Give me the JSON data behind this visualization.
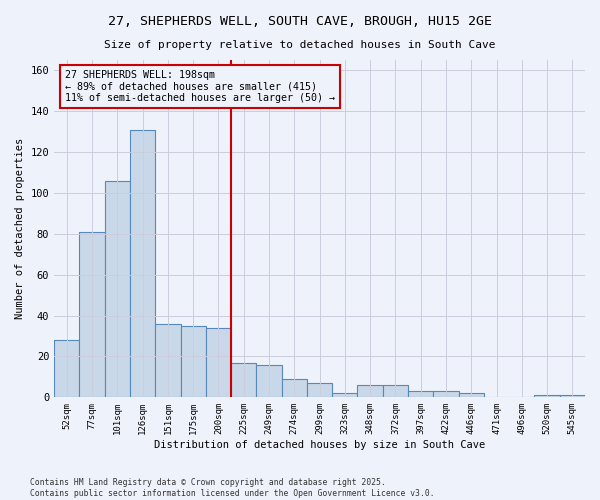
{
  "title1": "27, SHEPHERDS WELL, SOUTH CAVE, BROUGH, HU15 2GE",
  "title2": "Size of property relative to detached houses in South Cave",
  "xlabel": "Distribution of detached houses by size in South Cave",
  "ylabel": "Number of detached properties",
  "bar_labels": [
    "52sqm",
    "77sqm",
    "101sqm",
    "126sqm",
    "151sqm",
    "175sqm",
    "200sqm",
    "225sqm",
    "249sqm",
    "274sqm",
    "299sqm",
    "323sqm",
    "348sqm",
    "372sqm",
    "397sqm",
    "422sqm",
    "446sqm",
    "471sqm",
    "496sqm",
    "520sqm",
    "545sqm"
  ],
  "bar_values": [
    28,
    81,
    106,
    131,
    36,
    35,
    34,
    17,
    16,
    9,
    7,
    2,
    6,
    6,
    3,
    3,
    2,
    0,
    0,
    1,
    1
  ],
  "bar_color": "#c8d8e8",
  "bar_edge_color": "#5588bb",
  "vline_x": 6.5,
  "vline_color": "#cc0000",
  "annotation_text": "27 SHEPHERDS WELL: 198sqm\n← 89% of detached houses are smaller (415)\n11% of semi-detached houses are larger (50) →",
  "annotation_box_edge": "#cc0000",
  "yticks": [
    0,
    20,
    40,
    60,
    80,
    100,
    120,
    140,
    160
  ],
  "ylim": [
    0,
    165
  ],
  "footer1": "Contains HM Land Registry data © Crown copyright and database right 2025.",
  "footer2": "Contains public sector information licensed under the Open Government Licence v3.0.",
  "bg_color": "#eef2fa",
  "grid_color": "#ccccdd"
}
